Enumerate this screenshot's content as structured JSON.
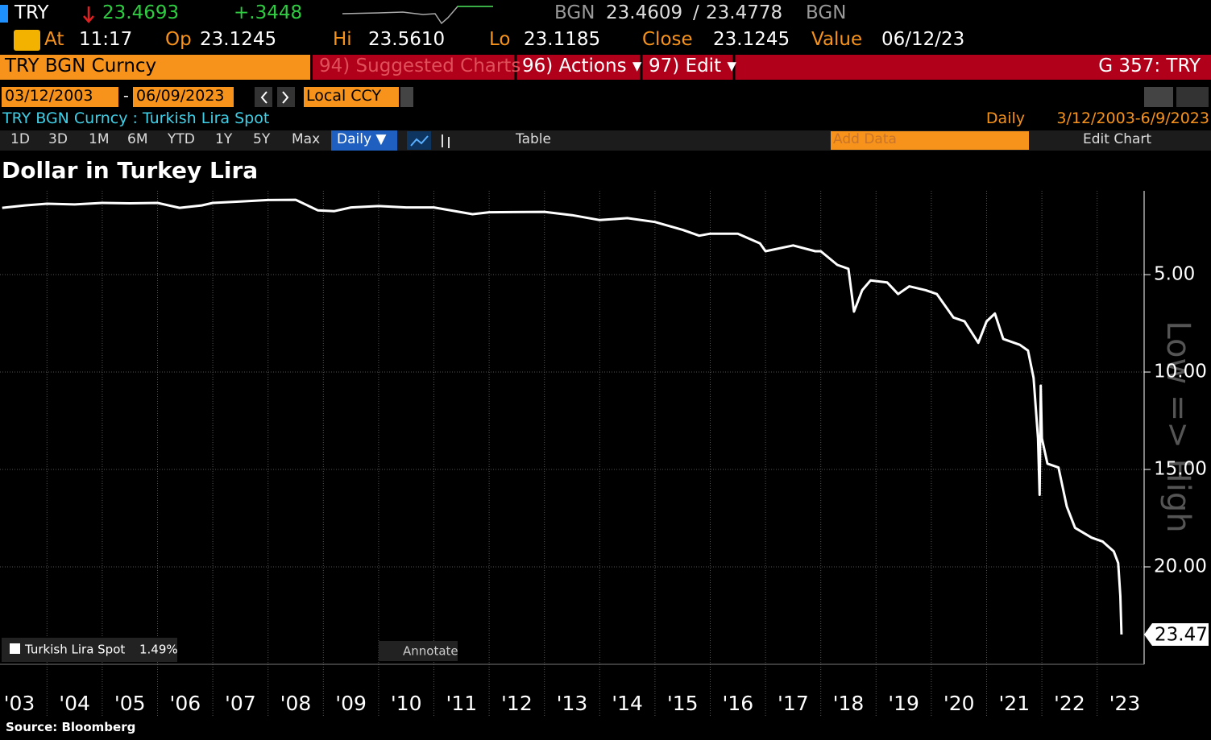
{
  "header": {
    "ticker": "TRY",
    "last": "23.4693",
    "change": "+.3448",
    "bid_source": "BGN",
    "bid": "23.4609",
    "separator": "/",
    "ask": "23.4778",
    "ask_source": "BGN",
    "at_label": "At",
    "time": "11:17",
    "open_label": "Op",
    "open": "23.1245",
    "hi_label": "Hi",
    "hi": "23.5610",
    "lo_label": "Lo",
    "lo": "23.1185",
    "close_label": "Close",
    "close": "23.1245",
    "value_label": "Value",
    "value_date": "06/12/23"
  },
  "toolbar": {
    "security": "TRY BGN Curncy",
    "suggested": "94) Suggested Charts",
    "actions": "96) Actions ▾",
    "edit": "97) Edit ▾",
    "function": "G 357: TRY"
  },
  "range": {
    "start": "03/12/2003",
    "dash": "-",
    "end": "06/09/2023",
    "currency": "Local CCY"
  },
  "description": {
    "security": "TRY BGN Curncy : Turkish Lira Spot",
    "frequency": "Daily",
    "period": "3/12/2003-6/9/2023"
  },
  "buttons": {
    "periods": [
      "1D",
      "3D",
      "1M",
      "6M",
      "YTD",
      "1Y",
      "5Y",
      "Max"
    ],
    "frequency": "Daily ▼",
    "table": "Table",
    "add_data": "Add Data",
    "edit_chart": "Edit Chart",
    "annotate": "Annotate"
  },
  "source": "Source: Bloomberg",
  "chart_data": {
    "type": "line",
    "title": "Dollar in Turkey Lira",
    "axis_note": "Low => High",
    "y_inverted": true,
    "grid": true,
    "xlim": [
      2003.15,
      2023.85
    ],
    "ylim": [
      0.7,
      25
    ],
    "yticks": [
      {
        "value": 5,
        "label": "5.00"
      },
      {
        "value": 10,
        "label": "10.00"
      },
      {
        "value": 15,
        "label": "15.00"
      },
      {
        "value": 20,
        "label": "20.00"
      }
    ],
    "xticks": [
      {
        "value": 2003,
        "label": "'03"
      },
      {
        "value": 2004,
        "label": "'04"
      },
      {
        "value": 2005,
        "label": "'05"
      },
      {
        "value": 2006,
        "label": "'06"
      },
      {
        "value": 2007,
        "label": "'07"
      },
      {
        "value": 2008,
        "label": "'08"
      },
      {
        "value": 2009,
        "label": "'09"
      },
      {
        "value": 2010,
        "label": "'10"
      },
      {
        "value": 2011,
        "label": "'11"
      },
      {
        "value": 2012,
        "label": "'12"
      },
      {
        "value": 2013,
        "label": "'13"
      },
      {
        "value": 2014,
        "label": "'14"
      },
      {
        "value": 2015,
        "label": "'15"
      },
      {
        "value": 2016,
        "label": "'16"
      },
      {
        "value": 2017,
        "label": "'17"
      },
      {
        "value": 2018,
        "label": "'18"
      },
      {
        "value": 2019,
        "label": "'19"
      },
      {
        "value": 2020,
        "label": "'20"
      },
      {
        "value": 2021,
        "label": "'21"
      },
      {
        "value": 2022,
        "label": "'22"
      },
      {
        "value": 2023,
        "label": "'23"
      }
    ],
    "series": [
      {
        "name": "Turkish Lira Spot",
        "legend_value": "1.49%",
        "color": "#ffffff",
        "last_label": "23.47",
        "x": [
          2003.19,
          2003.6,
          2004.0,
          2004.5,
          2005.0,
          2005.5,
          2006.0,
          2006.4,
          2006.8,
          2007.0,
          2007.5,
          2008.0,
          2008.5,
          2008.9,
          2009.2,
          2009.5,
          2010.0,
          2010.5,
          2011.0,
          2011.7,
          2012.0,
          2013.0,
          2013.5,
          2014.0,
          2014.5,
          2015.0,
          2015.5,
          2015.8,
          2016.0,
          2016.5,
          2016.9,
          2017.0,
          2017.5,
          2017.9,
          2018.0,
          2018.3,
          2018.5,
          2018.6,
          2018.75,
          2018.9,
          2019.2,
          2019.4,
          2019.6,
          2019.9,
          2020.1,
          2020.4,
          2020.6,
          2020.85,
          2021.0,
          2021.15,
          2021.3,
          2021.6,
          2021.75,
          2021.85,
          2021.93,
          2021.96,
          2021.98,
          2022.0,
          2022.1,
          2022.3,
          2022.45,
          2022.6,
          2022.9,
          2023.1,
          2023.3,
          2023.38,
          2023.42,
          2023.44
        ],
        "values": [
          1.57,
          1.45,
          1.36,
          1.4,
          1.32,
          1.34,
          1.32,
          1.57,
          1.45,
          1.32,
          1.25,
          1.17,
          1.16,
          1.7,
          1.74,
          1.55,
          1.48,
          1.55,
          1.55,
          1.9,
          1.8,
          1.78,
          1.95,
          2.2,
          2.1,
          2.3,
          2.7,
          3.0,
          2.9,
          2.9,
          3.4,
          3.8,
          3.5,
          3.8,
          3.8,
          4.5,
          4.7,
          6.9,
          5.8,
          5.3,
          5.4,
          6.0,
          5.6,
          5.8,
          6.0,
          7.2,
          7.4,
          8.5,
          7.4,
          7.0,
          8.3,
          8.6,
          8.9,
          10.3,
          13.4,
          16.3,
          10.7,
          13.4,
          14.7,
          14.9,
          16.9,
          18.0,
          18.5,
          18.7,
          19.2,
          19.8,
          21.5,
          23.47
        ]
      }
    ]
  }
}
